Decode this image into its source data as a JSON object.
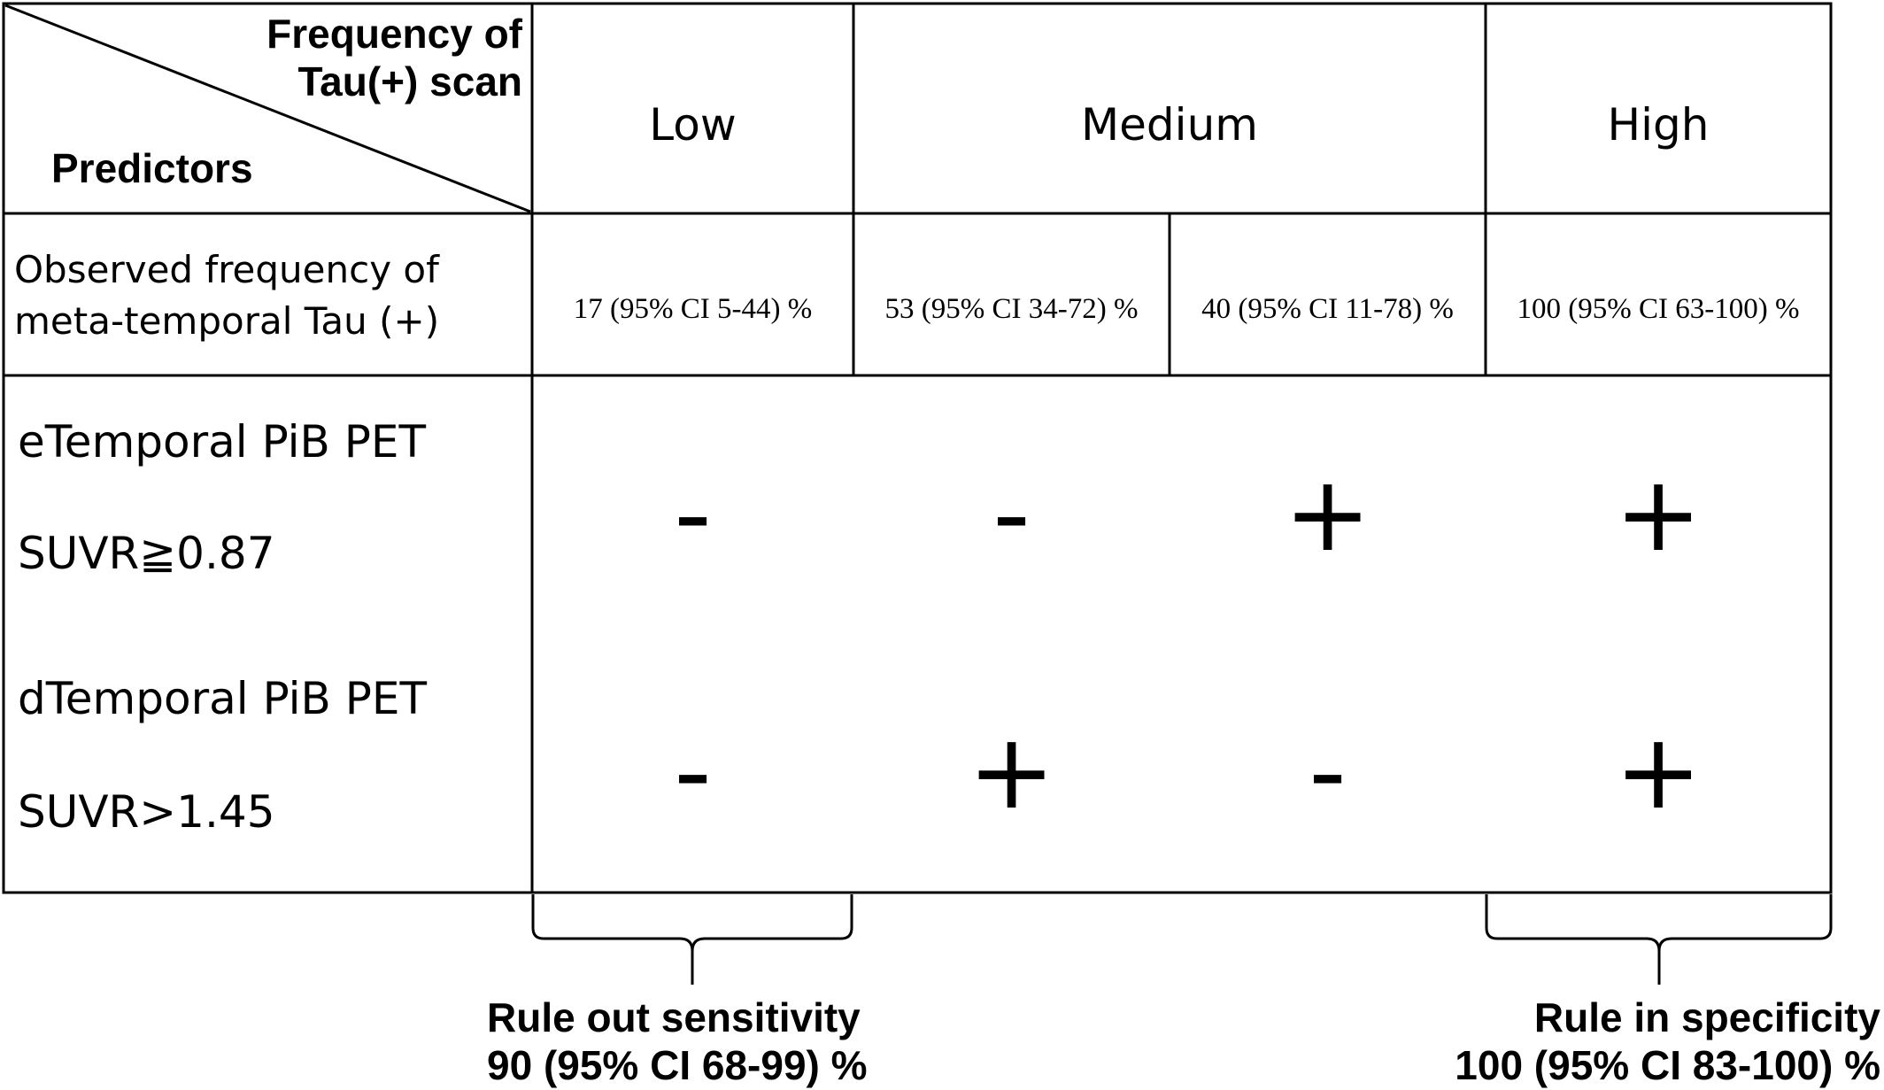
{
  "header": {
    "corner_top": [
      "Frequency of",
      "Tau(+) scan"
    ],
    "corner_bottom": "Predictors",
    "columns": [
      "Low",
      "Medium",
      "High"
    ]
  },
  "observed": {
    "label": [
      "Observed frequency of",
      "meta-temporal Tau (+)"
    ],
    "values": [
      "17 (95% CI 5-44) %",
      "53 (95% CI 34-72) %",
      "40 (95% CI 11-78) %",
      "100 (95% CI 63-100) %"
    ]
  },
  "predictors": [
    {
      "name": "eTemporal PiB PET",
      "criterion": "SUVR≧0.87",
      "signs": [
        "-",
        "-",
        "+",
        "+"
      ]
    },
    {
      "name": "dTemporal PiB PET",
      "criterion": "SUVR>1.45",
      "signs": [
        "-",
        "+",
        "-",
        "+"
      ]
    }
  ],
  "footer": {
    "rule_out": [
      "Rule out sensitivity",
      "90 (95% CI 68-99) %"
    ],
    "rule_in": [
      "Rule in specificity",
      "100 (95% CI 83-100) %"
    ]
  }
}
